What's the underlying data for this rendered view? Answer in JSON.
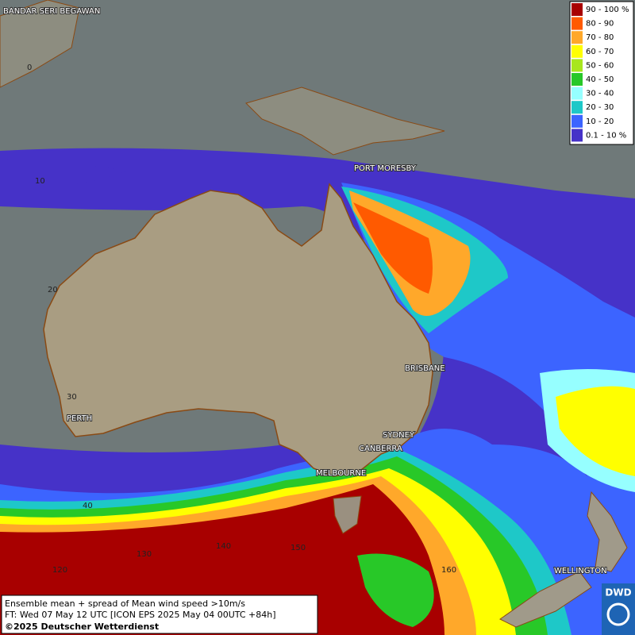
{
  "legend": [
    {
      "label": "90 - 100 %",
      "color": "#a80000"
    },
    {
      "label": "80 - 90",
      "color": "#ff5a00"
    },
    {
      "label": "70 - 80",
      "color": "#ffa82a"
    },
    {
      "label": "60 - 70",
      "color": "#ffff00"
    },
    {
      "label": "50 - 60",
      "color": "#a8e61e"
    },
    {
      "label": "40 - 50",
      "color": "#28c828"
    },
    {
      "label": "30 - 40",
      "color": "#96ffff"
    },
    {
      "label": "20 - 30",
      "color": "#1ec8c8"
    },
    {
      "label": "10 - 20",
      "color": "#3c64ff"
    },
    {
      "label": "0.1 - 10 %",
      "color": "#4632c8"
    }
  ],
  "cities": [
    "BANDAR SERI BEGAWAN",
    "PORT MORESBY",
    "BRISBANE",
    "SYDNEY",
    "CANBERRA",
    "MELBOURNE",
    "PERTH",
    "WELLINGTON"
  ],
  "grid_labels": [
    "0",
    "10",
    "20",
    "30",
    "40",
    "120",
    "130",
    "140",
    "150",
    "160"
  ],
  "footer": {
    "line1": "Ensemble mean + spread of Mean wind speed >10m/s",
    "line2": "FT: Wed 07 May 12 UTC [ICON EPS 2025 May 04 00UTC +84h]",
    "line3": "©2025 Deutscher Wetterdienst"
  },
  "logo": "DWD"
}
